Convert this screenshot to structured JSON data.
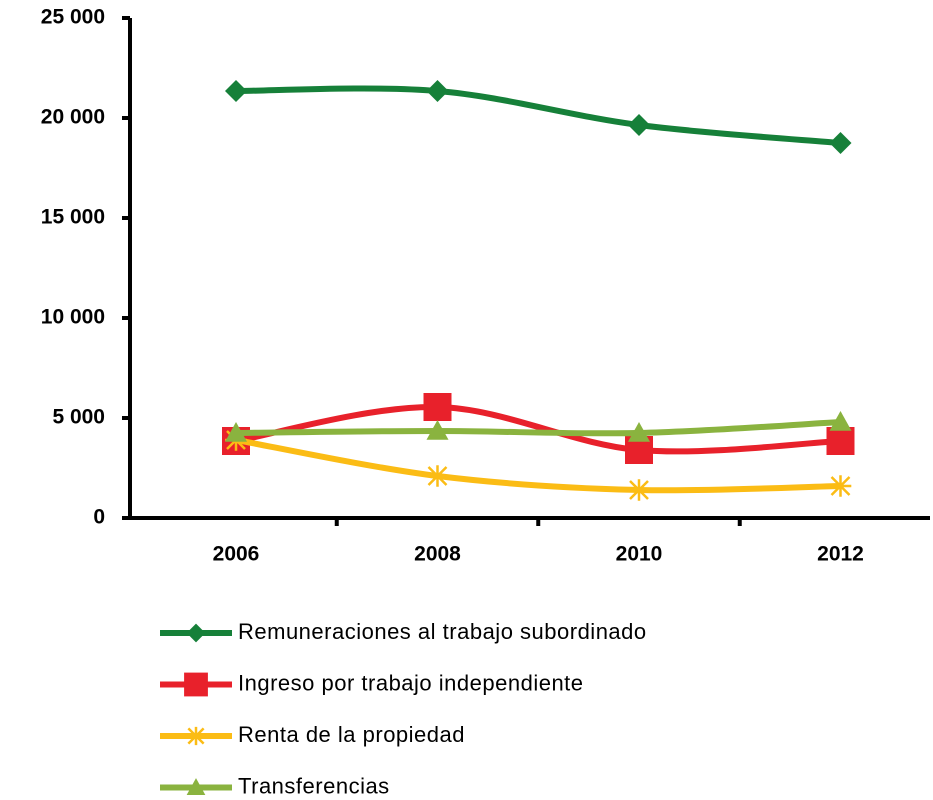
{
  "chart_data": {
    "type": "line",
    "categories": [
      "2006",
      "2008",
      "2010",
      "2012"
    ],
    "series": [
      {
        "name": "Remuneraciones al trabajo subordinado",
        "color": "#168039",
        "marker": "diamond",
        "values": [
          21350,
          21350,
          19650,
          18750
        ]
      },
      {
        "name": "Ingreso por trabajo independiente",
        "color": "#e8212b",
        "marker": "square",
        "values": [
          3850,
          5550,
          3400,
          3850
        ]
      },
      {
        "name": "Renta de la propiedad",
        "color": "#fbbc15",
        "marker": "asterisk",
        "values": [
          3900,
          2100,
          1400,
          1600
        ]
      },
      {
        "name": "Transferencias",
        "color": "#8ab33f",
        "marker": "triangle",
        "values": [
          4250,
          4350,
          4250,
          4800
        ]
      }
    ],
    "ylim": [
      0,
      25000
    ],
    "yticks": [
      0,
      {
        "value": 5000,
        "label": "5 000"
      },
      {
        "value": 10000,
        "label": "10 000"
      },
      {
        "value": 15000,
        "label": "15 000"
      },
      {
        "value": 20000,
        "label": "20 000"
      },
      {
        "value": 25000,
        "label": "25 000"
      }
    ],
    "grid": false,
    "legend": "bottom"
  }
}
